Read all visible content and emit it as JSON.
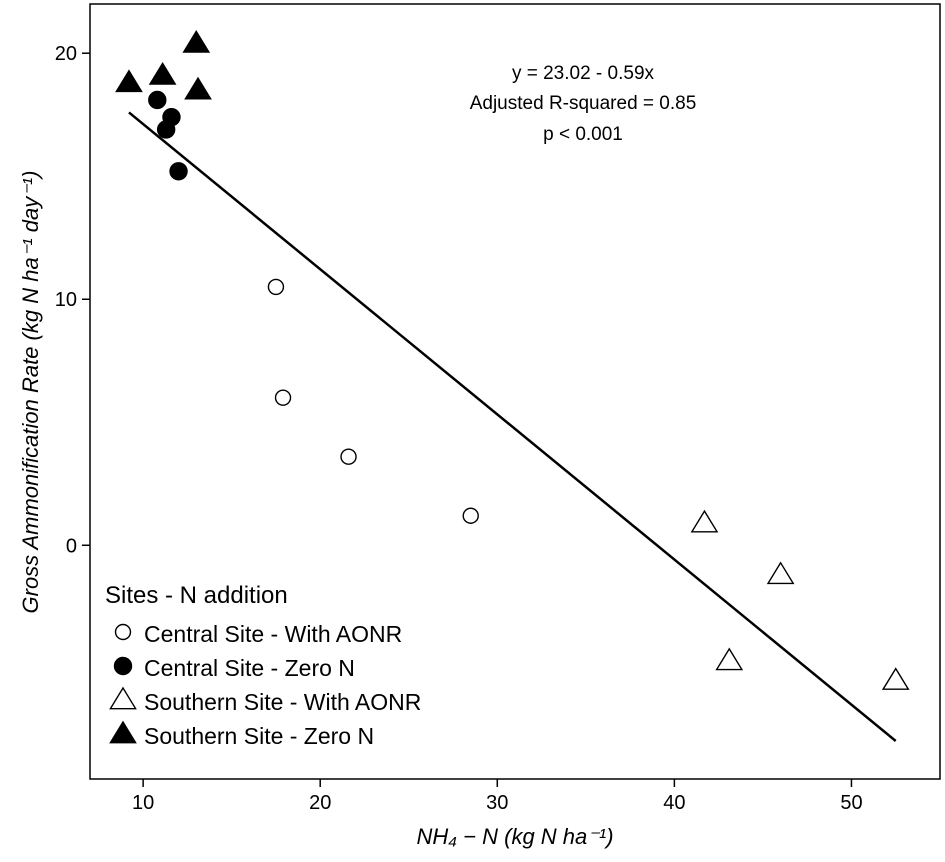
{
  "chart_data": {
    "type": "scatter",
    "xlabel": "NH₄ − N (kg N ha⁻¹)",
    "ylabel": "Gross Ammonification Rate (kg N ha⁻¹ day⁻¹)",
    "xlim": [
      7,
      55
    ],
    "ylim": [
      -9.5,
      22
    ],
    "x_ticks": [
      10,
      20,
      30,
      40,
      50
    ],
    "y_ticks": [
      0,
      10,
      20
    ],
    "grid": false,
    "legend_position": "bottom-left",
    "legend_title": "Sites - N addition",
    "series": [
      {
        "name": "Central Site - With AONR",
        "marker": "circle-open",
        "points": [
          [
            17.5,
            10.5
          ],
          [
            17.9,
            6.0
          ],
          [
            21.6,
            3.6
          ],
          [
            28.5,
            1.2
          ]
        ]
      },
      {
        "name": "Central Site - Zero N",
        "marker": "circle-filled",
        "points": [
          [
            10.8,
            18.1
          ],
          [
            11.6,
            17.4
          ],
          [
            11.3,
            16.9
          ],
          [
            12.0,
            15.2
          ]
        ]
      },
      {
        "name": "Southern Site - With AONR",
        "marker": "triangle-open",
        "points": [
          [
            41.7,
            0.9
          ],
          [
            46.0,
            -1.2
          ],
          [
            43.1,
            -4.7
          ],
          [
            52.5,
            -5.5
          ]
        ]
      },
      {
        "name": "Southern Site - Zero N",
        "marker": "triangle-filled",
        "points": [
          [
            9.2,
            18.8
          ],
          [
            11.1,
            19.1
          ],
          [
            13.0,
            20.4
          ],
          [
            13.1,
            18.5
          ]
        ]
      }
    ],
    "fit_line": {
      "intercept": 23.02,
      "slope": -0.59,
      "x_range": [
        9.2,
        52.5
      ]
    },
    "annotation": {
      "line1": "y = 23.02 - 0.59x",
      "line2": "Adjusted R-squared = 0.85",
      "line3": "p < 0.001"
    }
  }
}
